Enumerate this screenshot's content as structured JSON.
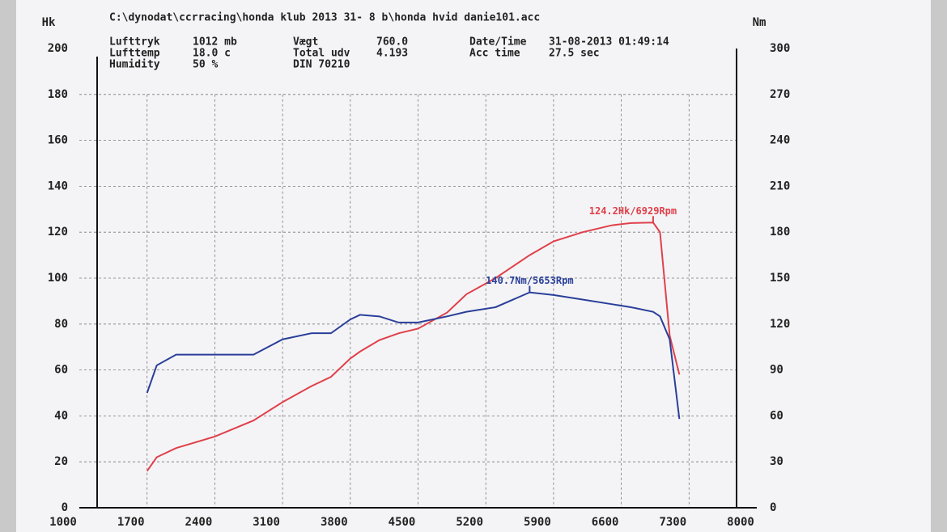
{
  "chart_data": {
    "type": "line",
    "subtitle": "C:\\dynodat\\ccrracing\\honda klub 2013 31- 8 b\\honda hvid danie101.acc",
    "info": [
      {
        "label": "Lufttryk",
        "value": "1012 mb"
      },
      {
        "label": "Lufttemp",
        "value": "18.0 c"
      },
      {
        "label": "Humidity",
        "value": "50 %"
      },
      {
        "label": "Vægt",
        "value": "760.0"
      },
      {
        "label": "Total udv",
        "value": "4.193"
      },
      {
        "label": "DIN 70210",
        "value": ""
      },
      {
        "label": "Date/Time",
        "value": "31-08-2013 01:49:14"
      },
      {
        "label": "Acc time",
        "value": "27.5 sec"
      }
    ],
    "y_label": "Hk",
    "y2_label": "Nm",
    "x": [
      1700,
      1800,
      2000,
      2400,
      2800,
      3100,
      3400,
      3600,
      3800,
      3900,
      4100,
      4300,
      4500,
      4800,
      5000,
      5300,
      5653,
      5900,
      6200,
      6500,
      6700,
      6929,
      7000,
      7100,
      7200
    ],
    "series": [
      {
        "name": "Hk",
        "color": "#e0404a",
        "values": [
          16,
          22,
          26,
          31,
          38,
          46,
          53,
          57,
          65,
          68,
          73,
          76,
          78,
          85,
          93,
          100,
          110,
          116,
          120,
          123,
          124,
          124.2,
          120,
          75,
          58
        ]
      },
      {
        "name": "Nm",
        "color": "#2a3f9a",
        "axis": "y2",
        "values": [
          75,
          93,
          100,
          100,
          100,
          110,
          114,
          114,
          123,
          126,
          125,
          121,
          121,
          125,
          128,
          131,
          140.7,
          139,
          136,
          133,
          131,
          128,
          125,
          110,
          58
        ]
      }
    ],
    "annotations": [
      {
        "text": "124.2Hk/6929Rpm",
        "series": 0,
        "index": 21
      },
      {
        "text": "140.7Nm/5653Rpm",
        "series": 1,
        "index": 16
      }
    ],
    "xlim": [
      1000,
      8000
    ],
    "xticks": [
      1000,
      1700,
      2400,
      3100,
      3800,
      4500,
      5200,
      5900,
      6600,
      7300,
      8000
    ],
    "ylim": [
      0,
      200
    ],
    "yticks": [
      0,
      20,
      40,
      60,
      80,
      100,
      120,
      140,
      160,
      180,
      200
    ],
    "y2lim": [
      0,
      300
    ],
    "y2ticks": [
      0,
      30,
      60,
      90,
      120,
      150,
      180,
      210,
      240,
      270,
      300
    ],
    "grid": true
  }
}
